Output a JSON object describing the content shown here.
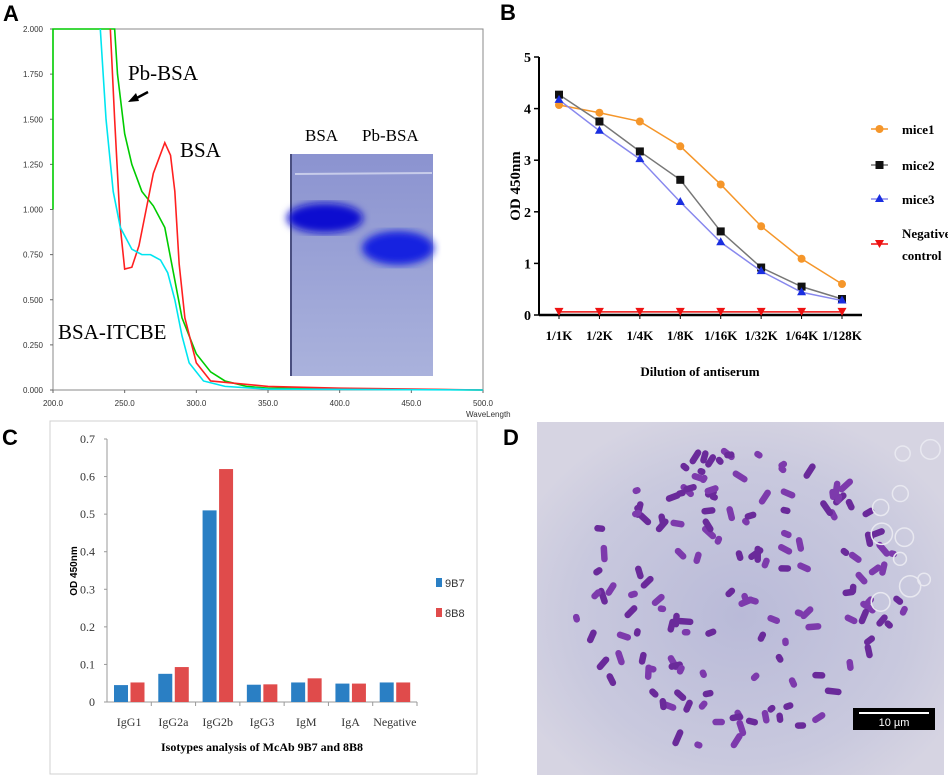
{
  "panels": {
    "a": {
      "label": "A"
    },
    "b": {
      "label": "B"
    },
    "c": {
      "label": "C"
    },
    "d": {
      "label": "D",
      "scale_bar": "10 µm"
    }
  },
  "chart_data": [
    {
      "panel": "A",
      "type": "line",
      "xlabel": "WaveLength",
      "xlim": [
        200,
        500
      ],
      "ylim": [
        0,
        2
      ],
      "x_ticks": [
        "200.0",
        "250.0",
        "300.0",
        "350.0",
        "400.0",
        "450.0",
        "500.0"
      ],
      "y_ticks": [
        "0.000",
        "0.250",
        "0.500",
        "0.750",
        "1.000",
        "1.250",
        "1.500",
        "1.750",
        "2.000"
      ],
      "grid": false,
      "annotations": [
        "Pb-BSA",
        "BSA",
        "BSA-ITCBE"
      ],
      "inset": {
        "type": "gel image",
        "lanes": [
          "BSA",
          "Pb-BSA"
        ]
      },
      "series": [
        {
          "name": "Pb-BSA",
          "color": "#00cc00",
          "points": [
            [
              200,
              1.0
            ],
            [
              200,
              2.0
            ],
            [
              243,
              2.0
            ],
            [
              245,
              1.75
            ],
            [
              250,
              1.42
            ],
            [
              255,
              1.25
            ],
            [
              262,
              1.1
            ],
            [
              270,
              1.02
            ],
            [
              278,
              0.9
            ],
            [
              284,
              0.65
            ],
            [
              290,
              0.4
            ],
            [
              300,
              0.2
            ],
            [
              310,
              0.1
            ],
            [
              320,
              0.05
            ],
            [
              335,
              0.02
            ],
            [
              350,
              0.01
            ],
            [
              500,
              0.0
            ]
          ]
        },
        {
          "name": "BSA",
          "color": "#ff2020",
          "points": [
            [
              240,
              2.0
            ],
            [
              243,
              1.5
            ],
            [
              247,
              0.9
            ],
            [
              250,
              0.67
            ],
            [
              255,
              0.68
            ],
            [
              260,
              0.8
            ],
            [
              265,
              1.0
            ],
            [
              270,
              1.2
            ],
            [
              278,
              1.37
            ],
            [
              282,
              1.3
            ],
            [
              285,
              1.1
            ],
            [
              288,
              0.7
            ],
            [
              292,
              0.4
            ],
            [
              300,
              0.15
            ],
            [
              310,
              0.05
            ],
            [
              350,
              0.02
            ],
            [
              400,
              0.01
            ],
            [
              450,
              0.005
            ],
            [
              500,
              0.0
            ]
          ]
        },
        {
          "name": "BSA-ITCBE",
          "color": "#00e5f0",
          "points": [
            [
              233,
              2.0
            ],
            [
              237,
              1.5
            ],
            [
              242,
              1.1
            ],
            [
              247,
              0.9
            ],
            [
              255,
              0.78
            ],
            [
              262,
              0.75
            ],
            [
              268,
              0.75
            ],
            [
              275,
              0.72
            ],
            [
              280,
              0.65
            ],
            [
              285,
              0.5
            ],
            [
              290,
              0.3
            ],
            [
              295,
              0.15
            ],
            [
              305,
              0.05
            ],
            [
              320,
              0.02
            ],
            [
              350,
              0.005
            ],
            [
              500,
              0.0
            ]
          ]
        }
      ]
    },
    {
      "panel": "B",
      "type": "line",
      "xlabel": "Dilution of antiserum",
      "ylabel": "OD 450nm",
      "ylim": [
        0,
        5
      ],
      "y_ticks": [
        "0",
        "1",
        "2",
        "3",
        "4",
        "5"
      ],
      "categories": [
        "1/1K",
        "1/2K",
        "1/4K",
        "1/8K",
        "1/16K",
        "1/32K",
        "1/64K",
        "1/128K"
      ],
      "legend": "right",
      "series": [
        {
          "name": "mice1",
          "color": "#f5962a",
          "marker": "circle",
          "values": [
            4.07,
            3.92,
            3.75,
            3.27,
            2.53,
            1.72,
            1.09,
            0.6
          ]
        },
        {
          "name": "mice2",
          "color": "#111111",
          "line_color": "#777777",
          "marker": "square",
          "values": [
            4.27,
            3.75,
            3.17,
            2.62,
            1.62,
            0.92,
            0.55,
            0.31
          ]
        },
        {
          "name": "mice3",
          "color": "#1a2ee0",
          "line_color": "#8888ee",
          "marker": "triangle",
          "values": [
            4.17,
            3.57,
            3.02,
            2.19,
            1.41,
            0.85,
            0.44,
            0.28
          ]
        },
        {
          "name": "Negative control",
          "name_lines": [
            "Negative",
            "control"
          ],
          "color": "#ee1111",
          "marker": "triangle-down",
          "values": [
            0.06,
            0.06,
            0.06,
            0.06,
            0.06,
            0.06,
            0.06,
            0.06
          ]
        }
      ]
    },
    {
      "panel": "C",
      "type": "bar",
      "xlabel": "Isotypes analysis of McAb 9B7 and 8B8",
      "ylabel": "OD 450nm",
      "ylim": [
        0,
        0.7
      ],
      "y_ticks": [
        "0",
        "0.1",
        "0.2",
        "0.3",
        "0.4",
        "0.5",
        "0.6",
        "0.7"
      ],
      "categories": [
        "IgG1",
        "IgG2a",
        "IgG2b",
        "IgG3",
        "IgM",
        "IgA",
        "Negative"
      ],
      "legend": "right",
      "series": [
        {
          "name": "9B7",
          "color": "#2a7fc4",
          "values": [
            0.045,
            0.075,
            0.51,
            0.046,
            0.052,
            0.049,
            0.052
          ]
        },
        {
          "name": "8B8",
          "color": "#e04b4b",
          "values": [
            0.052,
            0.093,
            0.62,
            0.047,
            0.063,
            0.049,
            0.052
          ]
        }
      ]
    }
  ]
}
